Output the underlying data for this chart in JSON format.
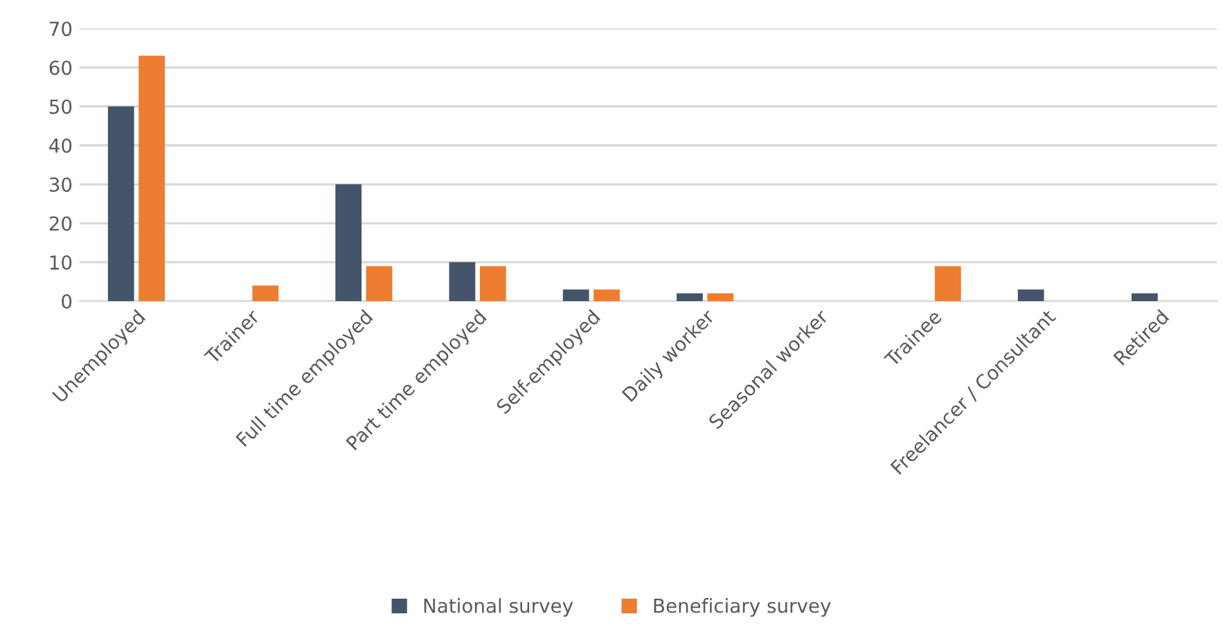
{
  "chart_data": {
    "type": "bar",
    "categories": [
      "Unemployed",
      "Trainer",
      "Full time employed",
      "Part time employed",
      "Self-employed",
      "Daily worker",
      "Seasonal worker",
      "Trainee",
      "Freelancer / Consultant",
      "Retired"
    ],
    "series": [
      {
        "name": "National survey",
        "color": "#44546a",
        "values": [
          50,
          0,
          30,
          10,
          3,
          2,
          0,
          0,
          3,
          2
        ]
      },
      {
        "name": "Beneficiary survey",
        "color": "#ed7d31",
        "values": [
          63,
          4,
          9,
          9,
          3,
          2,
          0,
          9,
          0,
          0
        ]
      }
    ],
    "ylim": [
      0,
      70
    ],
    "yticks": [
      0,
      10,
      20,
      30,
      40,
      50,
      60,
      70
    ],
    "grid": "y",
    "legend": "bottom"
  }
}
